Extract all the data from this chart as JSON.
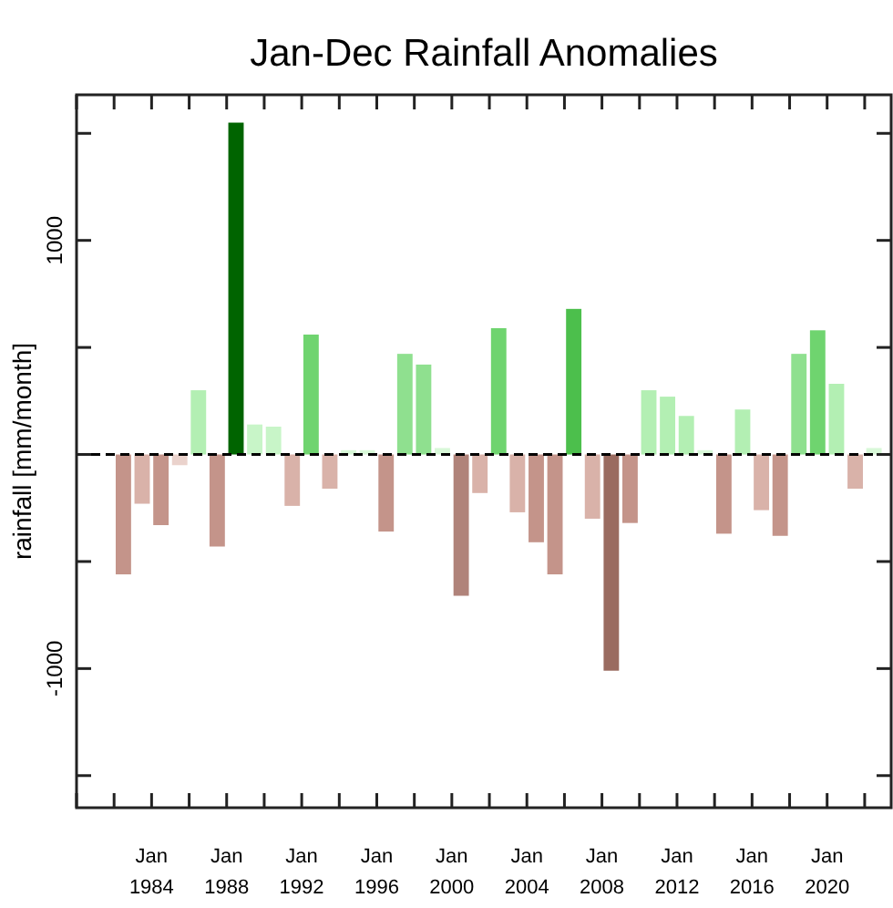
{
  "chart_data": {
    "type": "bar",
    "title": "Jan-Dec Rainfall Anomalies",
    "ylabel": "rainfall [mm/month]",
    "x": [
      "1982-07",
      "1983-07",
      "1984-07",
      "1985-07",
      "1986-07",
      "1987-07",
      "1988-07",
      "1989-07",
      "1990-07",
      "1991-07",
      "1992-07",
      "1993-07",
      "1994-07",
      "1995-07",
      "1996-07",
      "1997-07",
      "1998-07",
      "1999-07",
      "2000-07",
      "2001-07",
      "2002-07",
      "2003-07",
      "2004-07",
      "2005-07",
      "2006-07",
      "2007-07",
      "2008-07",
      "2009-07",
      "2010-07",
      "2011-07",
      "2012-07",
      "2013-07",
      "2014-07",
      "2015-07",
      "2016-07",
      "2017-07",
      "2018-07",
      "2019-07",
      "2020-07",
      "2021-07",
      "2022-07"
    ],
    "values": [
      -560,
      -230,
      -330,
      -50,
      300,
      -430,
      1550,
      140,
      130,
      -240,
      560,
      -160,
      20,
      20,
      -360,
      470,
      420,
      30,
      -660,
      -180,
      590,
      -270,
      -410,
      -560,
      680,
      -300,
      -1010,
      -320,
      300,
      270,
      180,
      20,
      -370,
      210,
      -260,
      -380,
      470,
      580,
      330,
      -160,
      30
    ],
    "colors": [
      "#c4948a",
      "#d9b2a9",
      "#c4948a",
      "#ead2cc",
      "#b3efb3",
      "#c4948a",
      "#006400",
      "#c8f5c8",
      "#c8f5c8",
      "#d9b2a9",
      "#6fd46f",
      "#d9b2a9",
      "#d8f8d8",
      "#d8f8d8",
      "#c4948a",
      "#8fe08f",
      "#8fe08f",
      "#d8f8d8",
      "#b0837a",
      "#d9b2a9",
      "#6fd46f",
      "#d9b2a9",
      "#c4948a",
      "#c4948a",
      "#4cbf4c",
      "#d9b2a9",
      "#9a6b60",
      "#c4948a",
      "#b3efb3",
      "#b3efb3",
      "#b3efb3",
      "#d8f8d8",
      "#c4948a",
      "#b3efb3",
      "#d9b2a9",
      "#c4948a",
      "#8fe08f",
      "#6fd46f",
      "#b3efb3",
      "#d9b2a9",
      "#d8f8d8"
    ],
    "xlim": [
      "1980-01",
      "2023-06"
    ],
    "xticks": [
      {
        "value": "1980-01",
        "label": null
      },
      {
        "value": "1982-01",
        "label": null
      },
      {
        "value": "1984-01",
        "label": "Jan\n1984"
      },
      {
        "value": "1986-01",
        "label": null
      },
      {
        "value": "1988-01",
        "label": "Jan\n1988"
      },
      {
        "value": "1990-01",
        "label": null
      },
      {
        "value": "1992-01",
        "label": "Jan\n1992"
      },
      {
        "value": "1994-01",
        "label": null
      },
      {
        "value": "1996-01",
        "label": "Jan\n1996"
      },
      {
        "value": "1998-01",
        "label": null
      },
      {
        "value": "2000-01",
        "label": "Jan\n2000"
      },
      {
        "value": "2002-01",
        "label": null
      },
      {
        "value": "2004-01",
        "label": "Jan\n2004"
      },
      {
        "value": "2006-01",
        "label": null
      },
      {
        "value": "2008-01",
        "label": "Jan\n2008"
      },
      {
        "value": "2010-01",
        "label": null
      },
      {
        "value": "2012-01",
        "label": "Jan\n2012"
      },
      {
        "value": "2014-01",
        "label": null
      },
      {
        "value": "2016-01",
        "label": "Jan\n2016"
      },
      {
        "value": "2018-01",
        "label": null
      },
      {
        "value": "2020-01",
        "label": "Jan\n2020"
      },
      {
        "value": "2022-01",
        "label": null
      }
    ],
    "ylim": [
      -1650,
      1680
    ],
    "yticks": [
      {
        "value": -1500,
        "label": null
      },
      -1000,
      {
        "value": -500,
        "label": null
      },
      {
        "value": 0,
        "label": null
      },
      {
        "value": 500,
        "label": null
      },
      1000,
      {
        "value": 1500,
        "label": null
      }
    ],
    "ref_lines": [
      {
        "axis": "y",
        "value": 0,
        "color": "#000000",
        "line_style": "dashed"
      }
    ],
    "grid": false
  }
}
